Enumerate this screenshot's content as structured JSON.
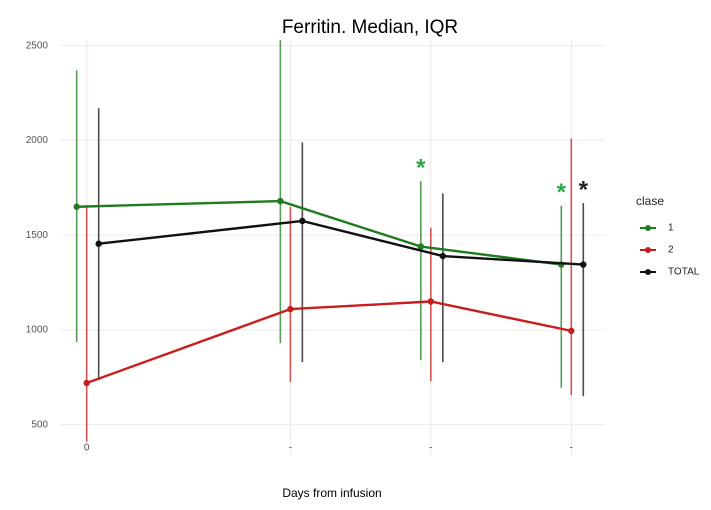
{
  "chart_data": {
    "type": "line",
    "title": "Ferritin. Median, IQR",
    "x_label": "Days from infusion",
    "legend_title": "clase",
    "legend_position": "right",
    "grid": true,
    "x": [
      0,
      1.45,
      2.45,
      3.45
    ],
    "xlim": [
      -0.19,
      3.69
    ],
    "xticks": [
      0,
      {
        "value": 1.45,
        "label": "-"
      },
      {
        "value": 2.45,
        "label": "-"
      },
      {
        "value": 3.45,
        "label": "-"
      }
    ],
    "ylim": [
      340,
      2530
    ],
    "yticks": [
      500,
      1000,
      1500,
      2000,
      2500
    ],
    "series": [
      {
        "name": "1",
        "color": "#1e7b1e",
        "values": [
          1650,
          1680,
          1440,
          1345
        ],
        "q1": [
          935,
          930,
          840,
          695
        ],
        "q3": [
          2370,
          2530,
          1785,
          1655
        ]
      },
      {
        "name": "2",
        "color": "#c81e1e",
        "values": [
          720,
          1110,
          1150,
          995
        ],
        "q1": [
          410,
          725,
          730,
          655
        ],
        "q3": [
          1650,
          1650,
          1540,
          2010
        ]
      },
      {
        "name": "TOTAL",
        "color": "#111111",
        "values": [
          1455,
          1575,
          1390,
          1345
        ],
        "q1": [
          735,
          830,
          830,
          650
        ],
        "q3": [
          2170,
          1990,
          1720,
          1670
        ]
      }
    ],
    "annotations": [
      {
        "text": "*",
        "series": 0,
        "index": 2
      },
      {
        "text": "*",
        "series": 0,
        "index": 3
      },
      {
        "text": "*",
        "series": 2,
        "index": 3
      }
    ]
  }
}
